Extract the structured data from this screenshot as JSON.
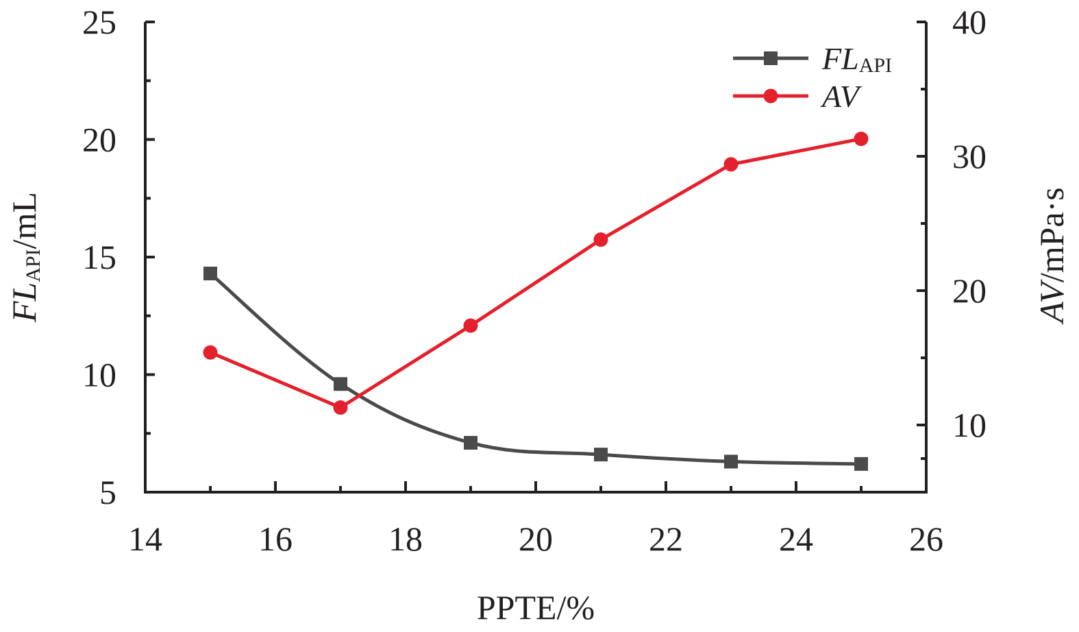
{
  "chart_data": {
    "type": "line",
    "xlabel": "PPTE/%",
    "ylabel_left": {
      "main": "FL",
      "sub": "API",
      "unit": "/mL"
    },
    "ylabel_right": {
      "main": "AV",
      "unit": "/mPa·s"
    },
    "xlim": [
      14,
      26
    ],
    "ylim_left": [
      5,
      25
    ],
    "ylim_right": [
      5,
      40
    ],
    "x_ticks": [
      14,
      16,
      18,
      20,
      22,
      24,
      26
    ],
    "y_left_ticks": [
      5,
      10,
      15,
      20,
      25
    ],
    "y_right_ticks": [
      10,
      20,
      30,
      40
    ],
    "grid": false,
    "legend_position": "top-right",
    "series": [
      {
        "name": "FL",
        "name_sub": "API",
        "axis": "left",
        "color": "#4a4a4a",
        "marker": "square",
        "smooth": true,
        "x": [
          15,
          17,
          19,
          21,
          23,
          25
        ],
        "y": [
          14.3,
          9.6,
          7.1,
          6.6,
          6.3,
          6.2
        ]
      },
      {
        "name": "AV",
        "axis": "right",
        "color": "#e3202b",
        "marker": "circle",
        "smooth": false,
        "x": [
          15,
          17,
          19,
          21,
          23,
          25
        ],
        "y": [
          15.4,
          11.3,
          17.4,
          23.8,
          29.4,
          31.3
        ]
      }
    ]
  }
}
